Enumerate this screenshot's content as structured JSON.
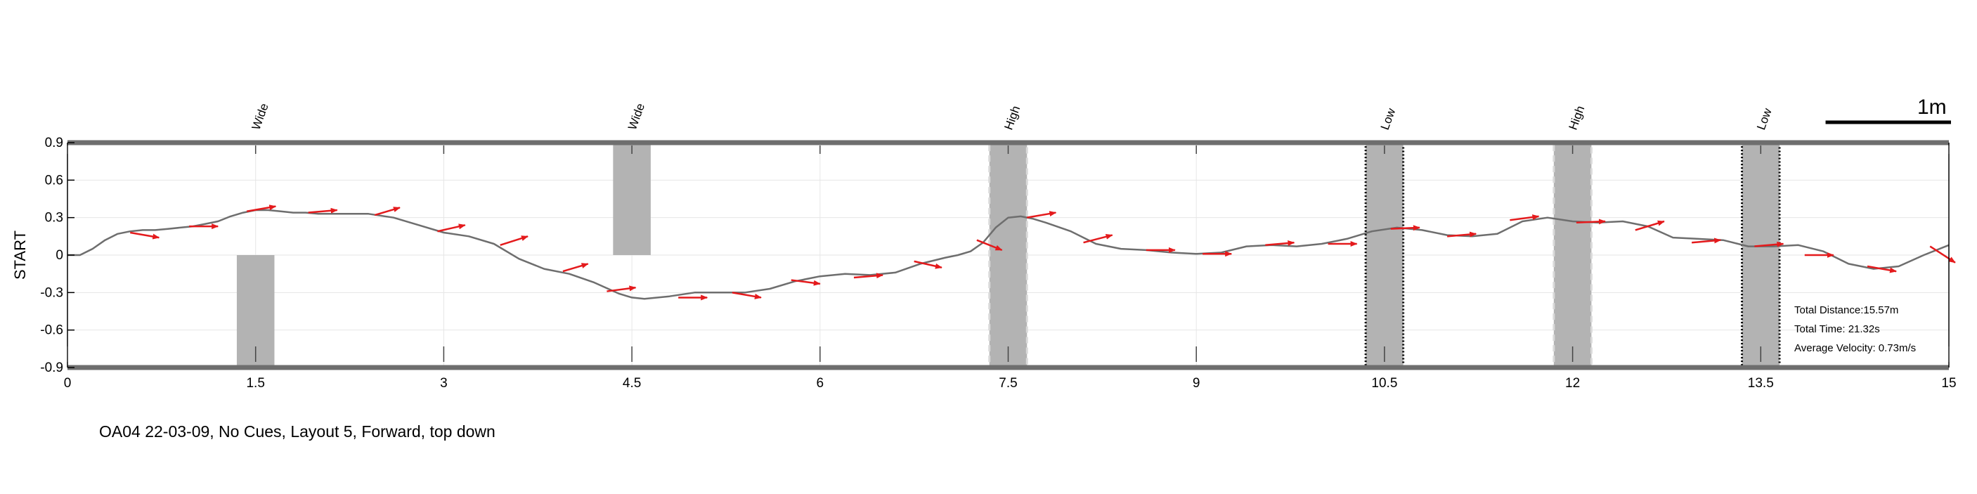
{
  "chart_data": {
    "type": "line",
    "title": "",
    "xlabel": "",
    "ylabel": "START",
    "xlim": [
      0,
      15
    ],
    "ylim": [
      -0.9,
      0.9
    ],
    "grid": true,
    "xticks": [
      0,
      1.5,
      3,
      4.5,
      6,
      7.5,
      9,
      10.5,
      12,
      13.5,
      15
    ],
    "xtick_labels": [
      "0",
      "1.5",
      "3",
      "4.5",
      "6",
      "7.5",
      "9",
      "10.5",
      "12",
      "13.5",
      "15"
    ],
    "yticks": [
      -0.9,
      -0.6,
      -0.3,
      0,
      0.3,
      0.6,
      0.9
    ],
    "ytick_labels": [
      "-0.9",
      "-0.6",
      "-0.3",
      "0",
      "0.3",
      "0.6",
      "0.9"
    ],
    "colors": {
      "path": "#6e6e6e",
      "arrows": "#e41a1c",
      "obstacle": "#b3b3b3",
      "boundary": "#6e6e6e"
    },
    "obstacles": [
      {
        "label": "Wide",
        "x": [
          1.35,
          1.65
        ],
        "y": [
          -0.9,
          0
        ],
        "border": "none"
      },
      {
        "label": "Wide",
        "x": [
          4.35,
          4.65
        ],
        "y": [
          0,
          0.9
        ],
        "border": "none"
      },
      {
        "label": "High",
        "x": [
          7.35,
          7.65
        ],
        "y": [
          -0.9,
          0.9
        ],
        "border": "dashed-gray"
      },
      {
        "label": "Low",
        "x": [
          10.35,
          10.65
        ],
        "y": [
          -0.9,
          0.9
        ],
        "border": "dotted-black"
      },
      {
        "label": "High",
        "x": [
          11.85,
          12.15
        ],
        "y": [
          -0.9,
          0.9
        ],
        "border": "dashed-gray"
      },
      {
        "label": "Low",
        "x": [
          13.35,
          13.65
        ],
        "y": [
          -0.9,
          0.9
        ],
        "border": "dotted-black"
      }
    ],
    "series": [
      {
        "x": [
          0,
          0.1,
          0.2,
          0.3,
          0.4,
          0.5,
          0.6,
          0.7,
          0.8,
          0.9,
          1.0,
          1.1,
          1.2,
          1.3,
          1.4,
          1.5,
          1.6,
          1.7,
          1.8,
          1.9,
          2.0,
          2.2,
          2.4,
          2.6,
          2.8,
          3.0,
          3.2,
          3.4,
          3.6,
          3.8,
          4.0,
          4.2,
          4.4,
          4.5,
          4.6,
          4.8,
          5.0,
          5.2,
          5.4,
          5.6,
          5.8,
          6.0,
          6.2,
          6.4,
          6.6,
          6.8,
          7.0,
          7.1,
          7.2,
          7.3,
          7.4,
          7.5,
          7.6,
          7.7,
          7.8,
          8.0,
          8.2,
          8.4,
          8.6,
          8.8,
          9.0,
          9.2,
          9.4,
          9.6,
          9.8,
          10.0,
          10.2,
          10.4,
          10.6,
          10.8,
          11.0,
          11.2,
          11.4,
          11.6,
          11.8,
          12.0,
          12.2,
          12.4,
          12.6,
          12.8,
          13.0,
          13.2,
          13.4,
          13.6,
          13.8,
          14.0,
          14.2,
          14.4,
          14.6,
          14.8,
          15.0
        ],
        "y": [
          0,
          0,
          0.05,
          0.12,
          0.17,
          0.19,
          0.2,
          0.2,
          0.21,
          0.22,
          0.23,
          0.25,
          0.27,
          0.31,
          0.34,
          0.36,
          0.36,
          0.35,
          0.34,
          0.34,
          0.33,
          0.33,
          0.33,
          0.3,
          0.24,
          0.18,
          0.15,
          0.09,
          -0.03,
          -0.11,
          -0.15,
          -0.22,
          -0.31,
          -0.34,
          -0.35,
          -0.33,
          -0.3,
          -0.3,
          -0.3,
          -0.27,
          -0.21,
          -0.17,
          -0.15,
          -0.16,
          -0.14,
          -0.07,
          -0.02,
          0,
          0.03,
          0.1,
          0.22,
          0.3,
          0.31,
          0.29,
          0.26,
          0.19,
          0.09,
          0.05,
          0.04,
          0.02,
          0.01,
          0.02,
          0.07,
          0.08,
          0.07,
          0.09,
          0.13,
          0.19,
          0.22,
          0.2,
          0.16,
          0.15,
          0.17,
          0.27,
          0.3,
          0.27,
          0.26,
          0.27,
          0.23,
          0.14,
          0.13,
          0.12,
          0.07,
          0.07,
          0.08,
          0.03,
          -0.07,
          -0.11,
          -0.09,
          0,
          0.08
        ]
      }
    ],
    "arrows": [
      {
        "x": 0.5,
        "y": 0.18,
        "dx": 0.23,
        "dy": -0.04
      },
      {
        "x": 0.97,
        "y": 0.23,
        "dx": 0.23,
        "dy": 0
      },
      {
        "x": 1.43,
        "y": 0.35,
        "dx": 0.23,
        "dy": 0.04
      },
      {
        "x": 1.92,
        "y": 0.34,
        "dx": 0.23,
        "dy": 0.02
      },
      {
        "x": 2.45,
        "y": 0.32,
        "dx": 0.2,
        "dy": 0.06
      },
      {
        "x": 2.95,
        "y": 0.19,
        "dx": 0.22,
        "dy": 0.05
      },
      {
        "x": 3.45,
        "y": 0.08,
        "dx": 0.22,
        "dy": 0.07
      },
      {
        "x": 3.95,
        "y": -0.13,
        "dx": 0.2,
        "dy": 0.06
      },
      {
        "x": 4.3,
        "y": -0.29,
        "dx": 0.23,
        "dy": 0.03
      },
      {
        "x": 4.87,
        "y": -0.34,
        "dx": 0.23,
        "dy": 0
      },
      {
        "x": 5.3,
        "y": -0.3,
        "dx": 0.23,
        "dy": -0.04
      },
      {
        "x": 5.77,
        "y": -0.2,
        "dx": 0.23,
        "dy": -0.03
      },
      {
        "x": 6.27,
        "y": -0.18,
        "dx": 0.23,
        "dy": 0.02
      },
      {
        "x": 6.75,
        "y": -0.05,
        "dx": 0.22,
        "dy": -0.05
      },
      {
        "x": 7.25,
        "y": 0.12,
        "dx": 0.2,
        "dy": -0.08
      },
      {
        "x": 7.65,
        "y": 0.3,
        "dx": 0.23,
        "dy": 0.04
      },
      {
        "x": 8.1,
        "y": 0.1,
        "dx": 0.23,
        "dy": 0.06
      },
      {
        "x": 8.6,
        "y": 0.04,
        "dx": 0.23,
        "dy": 0
      },
      {
        "x": 9.05,
        "y": 0.01,
        "dx": 0.23,
        "dy": 0
      },
      {
        "x": 9.55,
        "y": 0.08,
        "dx": 0.23,
        "dy": 0.02
      },
      {
        "x": 10.05,
        "y": 0.09,
        "dx": 0.23,
        "dy": 0
      },
      {
        "x": 10.55,
        "y": 0.21,
        "dx": 0.23,
        "dy": 0.01
      },
      {
        "x": 11.0,
        "y": 0.15,
        "dx": 0.23,
        "dy": 0.02
      },
      {
        "x": 11.5,
        "y": 0.28,
        "dx": 0.23,
        "dy": 0.03
      },
      {
        "x": 12.03,
        "y": 0.26,
        "dx": 0.23,
        "dy": 0.01
      },
      {
        "x": 12.5,
        "y": 0.2,
        "dx": 0.23,
        "dy": 0.07
      },
      {
        "x": 12.95,
        "y": 0.1,
        "dx": 0.23,
        "dy": 0.02
      },
      {
        "x": 13.45,
        "y": 0.07,
        "dx": 0.23,
        "dy": 0.02
      },
      {
        "x": 13.85,
        "y": 0,
        "dx": 0.23,
        "dy": 0
      },
      {
        "x": 14.35,
        "y": -0.09,
        "dx": 0.23,
        "dy": -0.04
      },
      {
        "x": 14.85,
        "y": 0.07,
        "dx": 0.2,
        "dy": -0.13
      }
    ],
    "stats": {
      "distance": "Total Distance:15.57m",
      "time": "Total Time: 21.32s",
      "velocity": "Average Velocity: 0.73m/s"
    },
    "scale_bar_label": "1m",
    "scale_bar_length": 1.0
  },
  "caption": "OA04 22-03-09, No Cues, Layout 5, Forward, top down"
}
